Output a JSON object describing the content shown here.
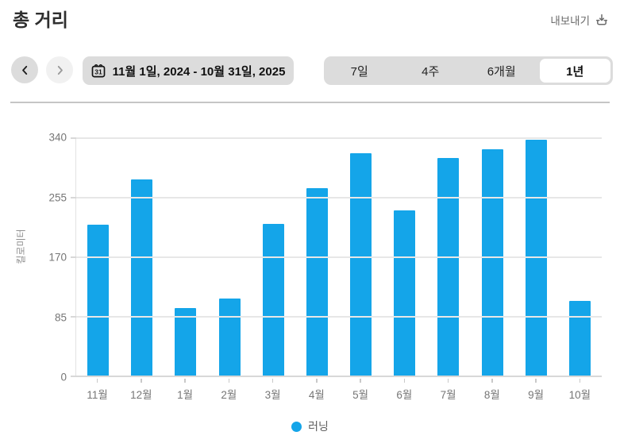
{
  "header": {
    "title": "총 거리",
    "export_label": "내보내기"
  },
  "controls": {
    "date_range": "11월 1일, 2024 - 10월 31일, 2025",
    "tabs": [
      {
        "label": "7일",
        "selected": false
      },
      {
        "label": "4주",
        "selected": false
      },
      {
        "label": "6개월",
        "selected": false
      },
      {
        "label": "1년",
        "selected": true
      }
    ]
  },
  "chart_data": {
    "type": "bar",
    "title": "총 거리",
    "ylabel": "킬로미터",
    "xlabel": "",
    "categories": [
      "11월",
      "12월",
      "1월",
      "2월",
      "3월",
      "4월",
      "5월",
      "6월",
      "7월",
      "8월",
      "9월",
      "10월"
    ],
    "values": [
      215,
      280,
      96,
      110,
      216,
      268,
      317,
      236,
      310,
      323,
      337,
      106
    ],
    "yticks": [
      0,
      85,
      170,
      255,
      340
    ],
    "ylim": [
      0,
      340
    ],
    "grid": true,
    "bar_color": "#14a5e9",
    "legend_position": "bottom",
    "legend": [
      {
        "label": "러닝",
        "color": "#14a5e9"
      }
    ]
  },
  "colors": {
    "accent_blue": "#14a5e9",
    "control_bg": "#dcdcdc",
    "disabled_circle": "#f1f1f1",
    "divider": "#c5c5c5",
    "axis_text": "#767676"
  }
}
